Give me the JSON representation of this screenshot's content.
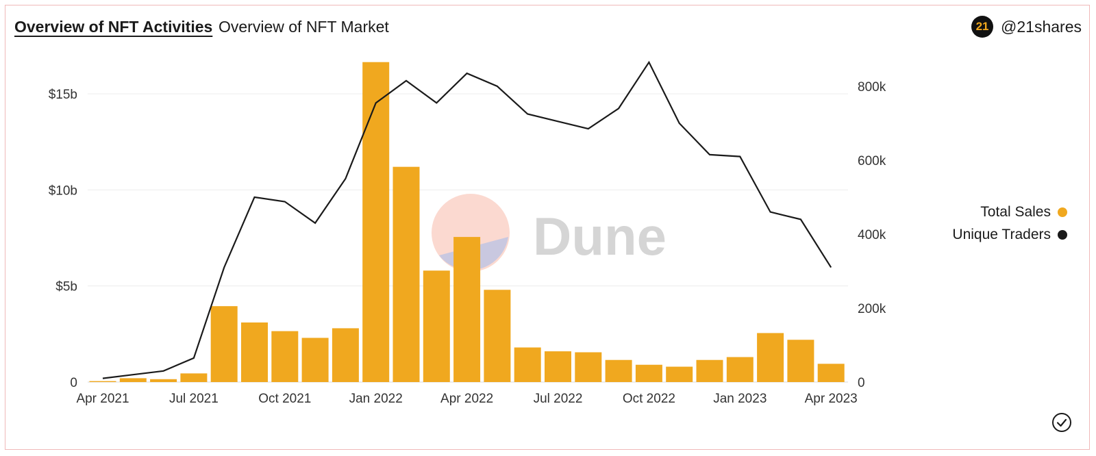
{
  "header": {
    "tabs": [
      {
        "label": "Overview of NFT Activities",
        "active": true
      },
      {
        "label": "Overview of NFT Market",
        "active": false
      }
    ],
    "brand": {
      "logo_text": "21",
      "handle": "@21shares"
    }
  },
  "watermark": {
    "text": "Dune"
  },
  "legend": {
    "items": [
      {
        "label": "Total Sales",
        "color": "#f0a81f"
      },
      {
        "label": "Unique Traders",
        "color": "#1a1a1a"
      }
    ]
  },
  "status": {
    "icon": "check-circle-icon"
  },
  "chart_data": {
    "type": "bar+line",
    "title": "Overview of NFT Activities",
    "categories": [
      "Apr 2021",
      "May 2021",
      "Jun 2021",
      "Jul 2021",
      "Aug 2021",
      "Sep 2021",
      "Oct 2021",
      "Nov 2021",
      "Dec 2021",
      "Jan 2022",
      "Feb 2022",
      "Mar 2022",
      "Apr 2022",
      "May 2022",
      "Jun 2022",
      "Jul 2022",
      "Aug 2022",
      "Sep 2022",
      "Oct 2022",
      "Nov 2022",
      "Dec 2022",
      "Jan 2023",
      "Feb 2023",
      "Mar 2023",
      "Apr 2023"
    ],
    "x_tick_labels": [
      "Apr 2021",
      "Jul 2021",
      "Oct 2021",
      "Jan 2022",
      "Apr 2022",
      "Jul 2022",
      "Oct 2022",
      "Jan 2023",
      "Apr 2023"
    ],
    "series": [
      {
        "name": "Total Sales",
        "type": "bar",
        "axis": "left",
        "color": "#f0a81f",
        "values": [
          0.05,
          0.2,
          0.15,
          0.45,
          3.95,
          3.1,
          2.65,
          2.3,
          2.8,
          16.65,
          11.2,
          5.8,
          7.55,
          4.8,
          1.8,
          1.6,
          1.55,
          1.15,
          0.9,
          0.8,
          1.15,
          1.3,
          2.55,
          2.2,
          0.95
        ]
      },
      {
        "name": "Unique Traders",
        "type": "line",
        "axis": "right",
        "color": "#1a1a1a",
        "values": [
          10000,
          20000,
          30000,
          65000,
          310000,
          500000,
          488000,
          430000,
          550000,
          755000,
          815000,
          755000,
          835000,
          800000,
          725000,
          705000,
          685000,
          740000,
          865000,
          700000,
          615000,
          610000,
          460000,
          440000,
          310000
        ]
      }
    ],
    "y_left": {
      "ticks": [
        0,
        5,
        10,
        15
      ],
      "tick_labels": [
        "0",
        "$5b",
        "$10b",
        "$15b"
      ],
      "ylim": [
        0,
        17
      ]
    },
    "y_right": {
      "ticks": [
        0,
        200000,
        400000,
        600000,
        800000
      ],
      "tick_labels": [
        "0",
        "200k",
        "400k",
        "600k",
        "800k"
      ],
      "ylim": [
        0,
        880000
      ]
    },
    "grid": true,
    "legend_position": "right"
  }
}
